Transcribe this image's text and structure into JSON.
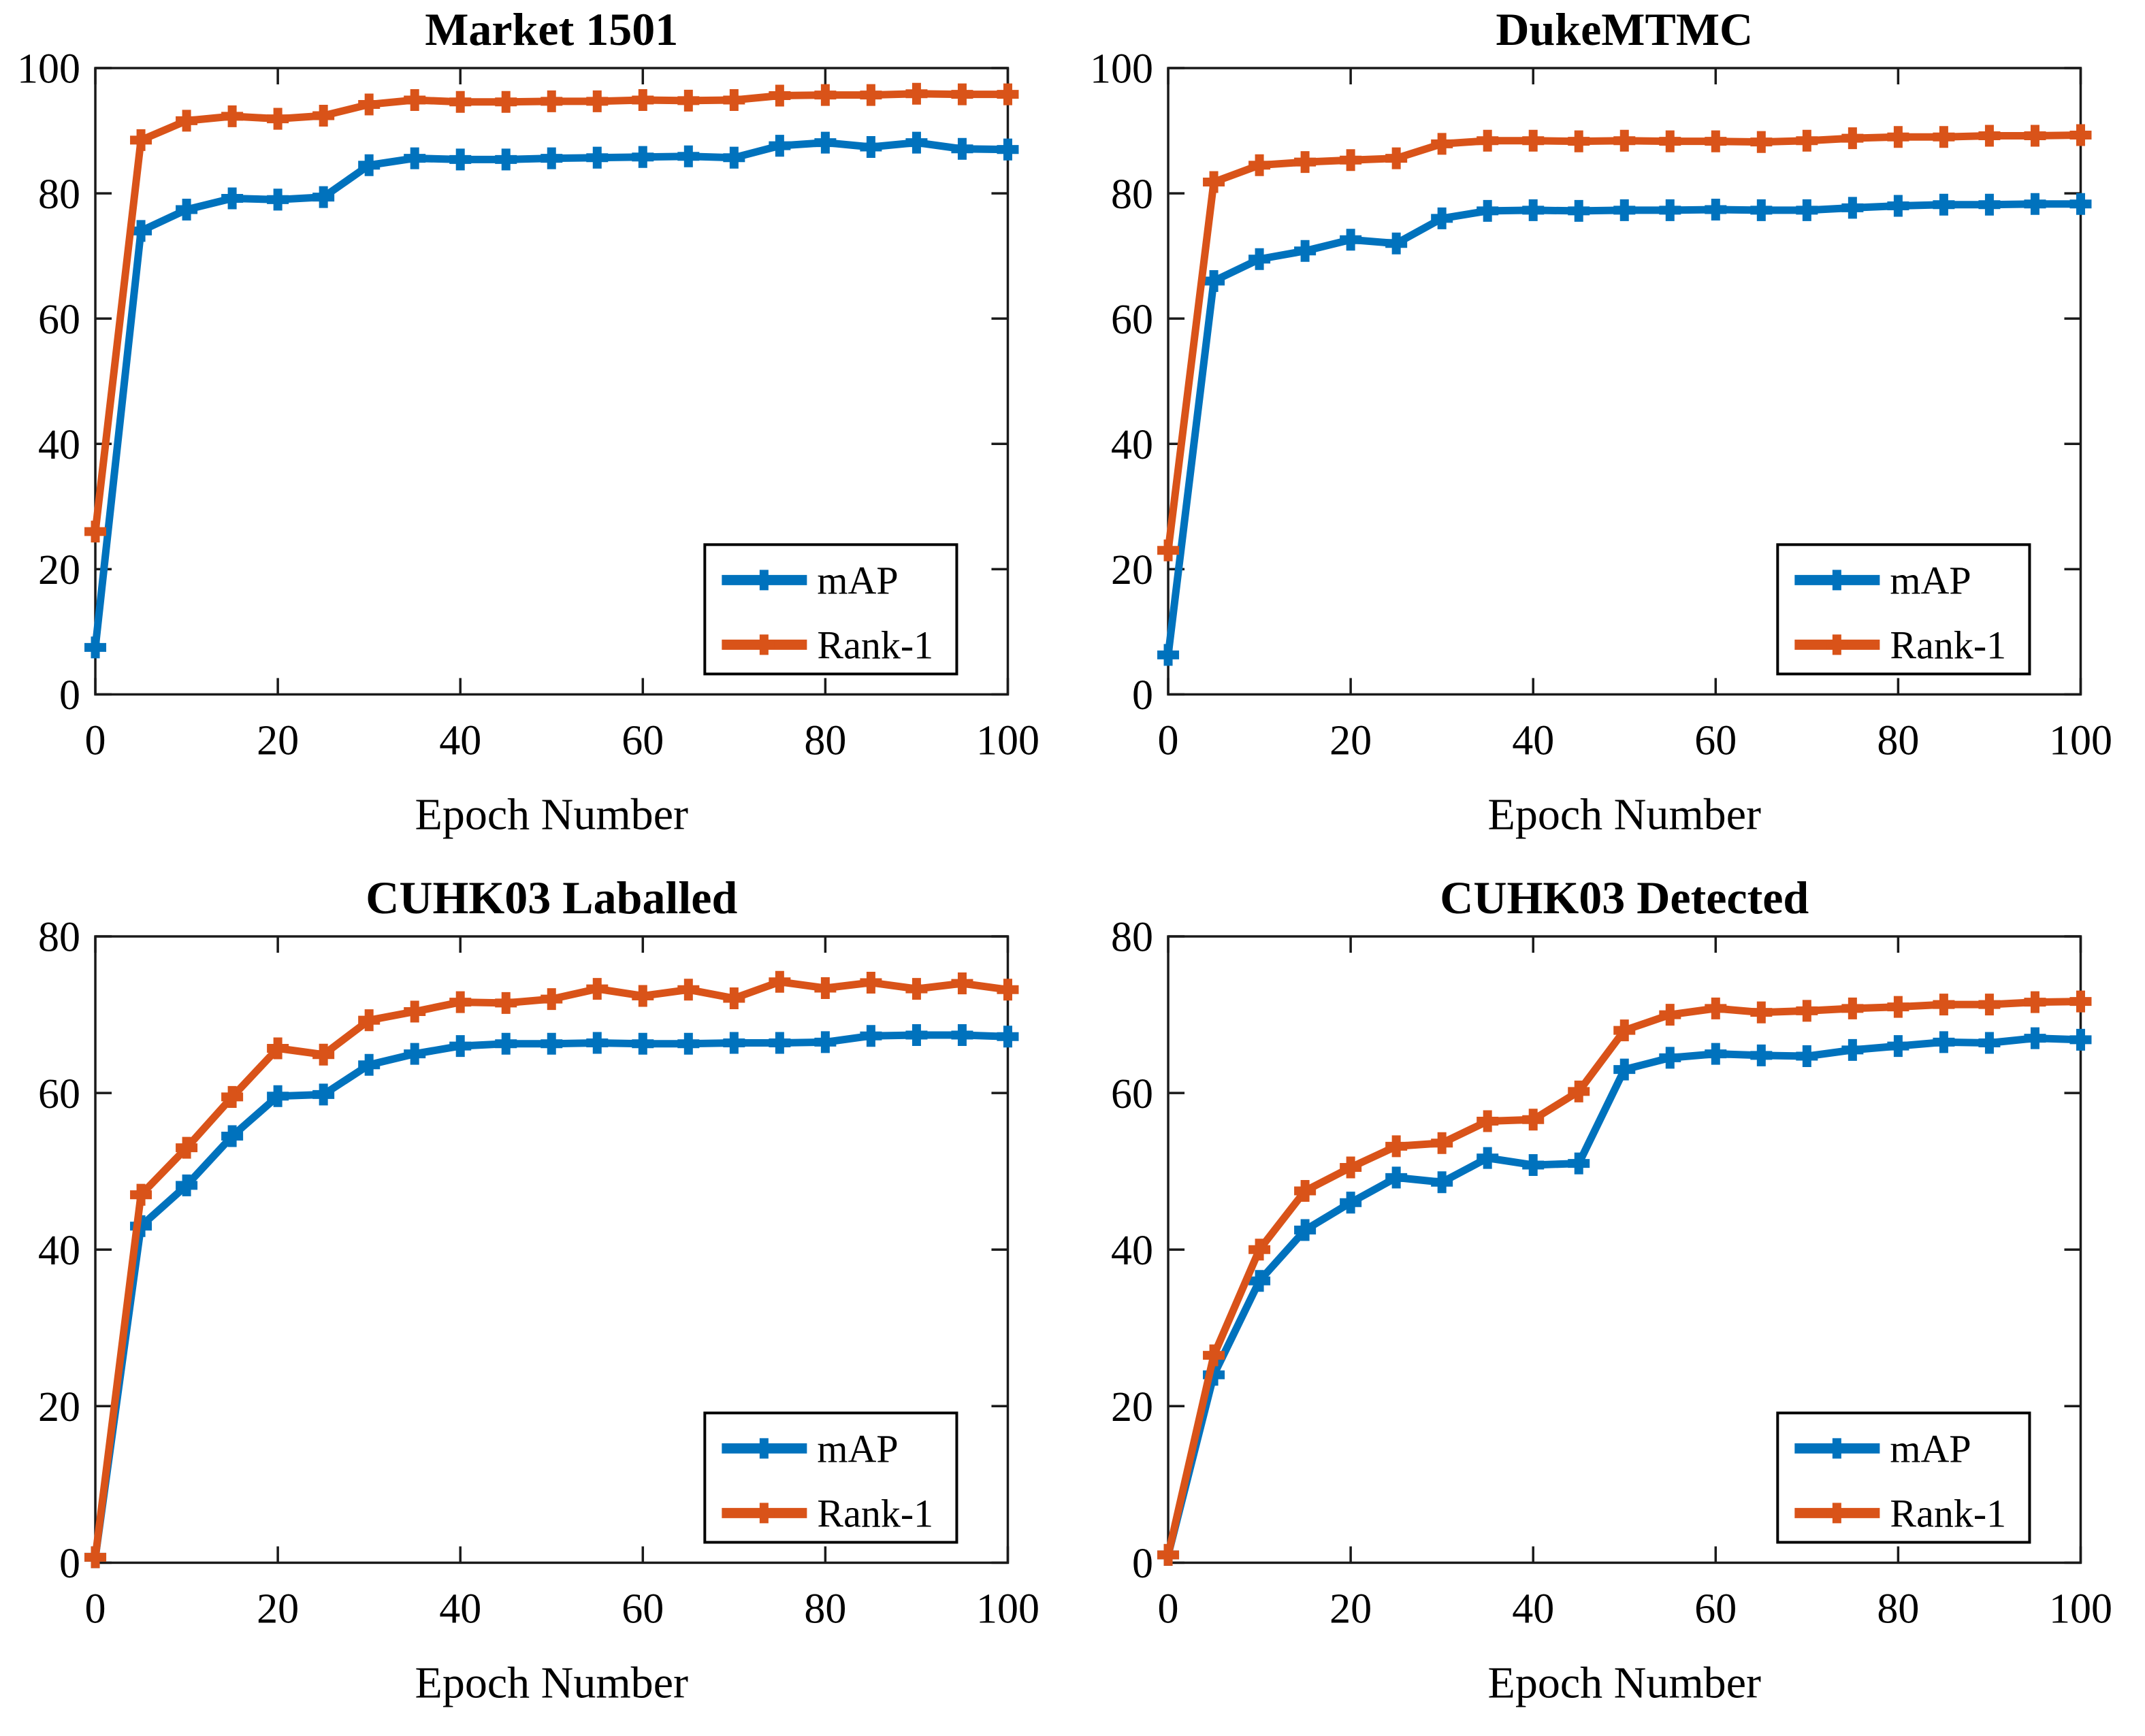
{
  "figure": {
    "background": "#ffffff",
    "axis_color": "#1a1a1a",
    "text_color": "#000000",
    "legend_labels": [
      "mAP",
      "Rank-1"
    ],
    "colors": {
      "mAP": "#0072BD",
      "Rank-1": "#D95319"
    }
  },
  "chart_data": [
    {
      "type": "line",
      "title": "Market 1501",
      "xlabel": "Epoch Number",
      "ylabel": "",
      "xlim": [
        0,
        100
      ],
      "ylim": [
        0,
        100
      ],
      "xticks": [
        0,
        20,
        40,
        60,
        80,
        100
      ],
      "yticks": [
        0,
        20,
        40,
        60,
        80,
        100
      ],
      "grid": false,
      "legend_position": "southeast",
      "x": [
        0,
        5,
        10,
        15,
        20,
        25,
        30,
        35,
        40,
        45,
        50,
        55,
        60,
        65,
        70,
        75,
        80,
        85,
        90,
        95,
        100
      ],
      "series": [
        {
          "name": "mAP",
          "color": "#0072BD",
          "values": [
            7.5,
            74.0,
            77.4,
            79.2,
            79.0,
            79.4,
            84.5,
            85.6,
            85.4,
            85.4,
            85.6,
            85.7,
            85.8,
            85.9,
            85.7,
            87.6,
            88.1,
            87.4,
            88.1,
            87.1,
            87.0
          ]
        },
        {
          "name": "Rank-1",
          "color": "#D95319",
          "values": [
            26.0,
            88.5,
            91.6,
            92.3,
            91.9,
            92.4,
            94.2,
            94.9,
            94.6,
            94.6,
            94.7,
            94.7,
            94.9,
            94.8,
            94.9,
            95.6,
            95.7,
            95.7,
            95.9,
            95.8,
            95.8
          ]
        }
      ]
    },
    {
      "type": "line",
      "title": "DukeMTMC",
      "xlabel": "Epoch Number",
      "ylabel": "",
      "xlim": [
        0,
        100
      ],
      "ylim": [
        0,
        100
      ],
      "xticks": [
        0,
        20,
        40,
        60,
        80,
        100
      ],
      "yticks": [
        0,
        20,
        40,
        60,
        80,
        100
      ],
      "grid": false,
      "legend_position": "southeast",
      "x": [
        0,
        5,
        10,
        15,
        20,
        25,
        30,
        35,
        40,
        45,
        50,
        55,
        60,
        65,
        70,
        75,
        80,
        85,
        90,
        95,
        100
      ],
      "series": [
        {
          "name": "mAP",
          "color": "#0072BD",
          "values": [
            6.3,
            66.0,
            69.5,
            70.8,
            72.6,
            72.0,
            76.0,
            77.2,
            77.3,
            77.2,
            77.3,
            77.3,
            77.4,
            77.3,
            77.3,
            77.7,
            78.0,
            78.2,
            78.2,
            78.3,
            78.3
          ]
        },
        {
          "name": "Rank-1",
          "color": "#D95319",
          "values": [
            23.0,
            81.8,
            84.5,
            85.0,
            85.3,
            85.6,
            87.9,
            88.4,
            88.4,
            88.3,
            88.4,
            88.3,
            88.3,
            88.2,
            88.4,
            88.8,
            89.0,
            89.0,
            89.2,
            89.2,
            89.3
          ]
        }
      ]
    },
    {
      "type": "line",
      "title": "CUHK03 Laballed",
      "xlabel": "Epoch Number",
      "ylabel": "",
      "xlim": [
        0,
        100
      ],
      "ylim": [
        0,
        80
      ],
      "xticks": [
        0,
        20,
        40,
        60,
        80,
        100
      ],
      "yticks": [
        0,
        20,
        40,
        60,
        80
      ],
      "grid": false,
      "legend_position": "southeast",
      "x": [
        0,
        5,
        10,
        15,
        20,
        25,
        30,
        35,
        40,
        45,
        50,
        55,
        60,
        65,
        70,
        75,
        80,
        85,
        90,
        95,
        100
      ],
      "series": [
        {
          "name": "mAP",
          "color": "#0072BD",
          "values": [
            0.7,
            43.0,
            48.2,
            54.5,
            59.6,
            59.8,
            63.6,
            65.0,
            66.0,
            66.3,
            66.3,
            66.4,
            66.3,
            66.3,
            66.4,
            66.4,
            66.5,
            67.3,
            67.4,
            67.4,
            67.2
          ]
        },
        {
          "name": "Rank-1",
          "color": "#D95319",
          "values": [
            0.7,
            47.0,
            53.0,
            59.5,
            65.7,
            64.9,
            69.3,
            70.4,
            71.6,
            71.5,
            72.0,
            73.3,
            72.4,
            73.2,
            72.1,
            74.2,
            73.4,
            74.1,
            73.3,
            74.0,
            73.2
          ]
        }
      ]
    },
    {
      "type": "line",
      "title": "CUHK03 Detected",
      "xlabel": "Epoch Number",
      "ylabel": "",
      "xlim": [
        0,
        100
      ],
      "ylim": [
        0,
        80
      ],
      "xticks": [
        0,
        20,
        40,
        60,
        80,
        100
      ],
      "yticks": [
        0,
        20,
        40,
        60,
        80
      ],
      "grid": false,
      "legend_position": "southeast",
      "x": [
        0,
        5,
        10,
        15,
        20,
        25,
        30,
        35,
        40,
        45,
        50,
        55,
        60,
        65,
        70,
        75,
        80,
        85,
        90,
        95,
        100
      ],
      "series": [
        {
          "name": "mAP",
          "color": "#0072BD",
          "values": [
            1.0,
            24.0,
            36.0,
            42.5,
            46.0,
            49.2,
            48.6,
            51.7,
            50.8,
            51.0,
            63.0,
            64.5,
            65.0,
            64.8,
            64.7,
            65.5,
            66.0,
            66.5,
            66.4,
            67.0,
            66.8
          ]
        },
        {
          "name": "Rank-1",
          "color": "#D95319",
          "values": [
            1.0,
            26.5,
            40.0,
            47.5,
            50.5,
            53.2,
            53.6,
            56.4,
            56.6,
            60.2,
            68.0,
            70.0,
            70.8,
            70.3,
            70.5,
            70.8,
            71.0,
            71.3,
            71.3,
            71.6,
            71.7
          ]
        }
      ]
    }
  ]
}
